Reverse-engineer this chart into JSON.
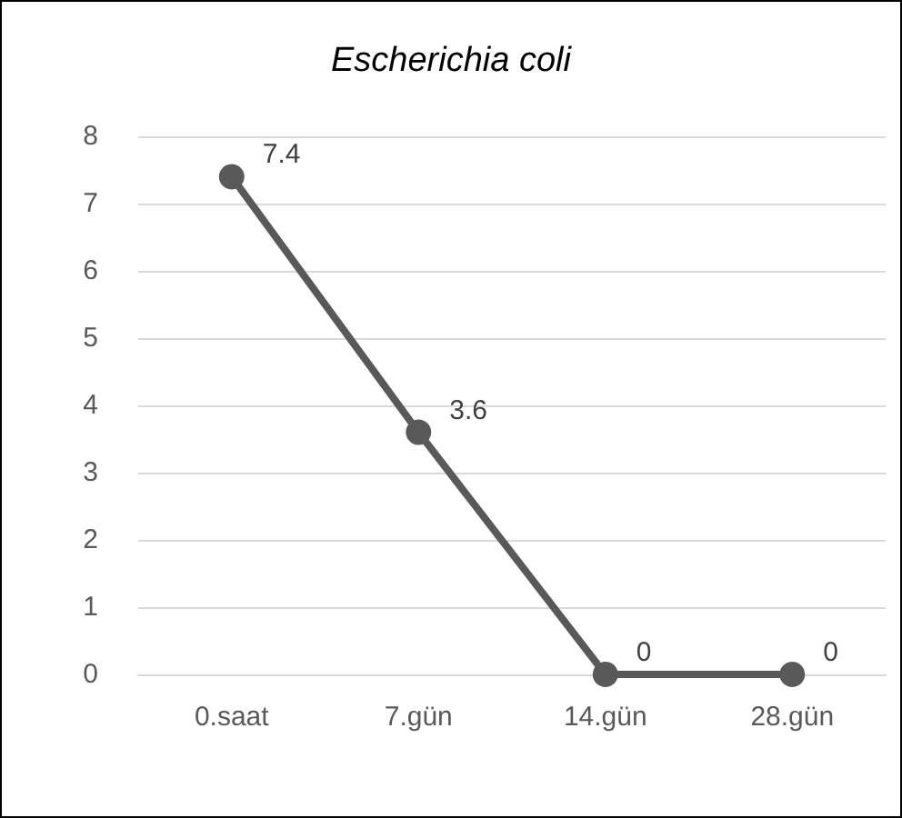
{
  "chart_data": {
    "type": "line",
    "title": "Escherichia coli",
    "categories": [
      "0.saat",
      "7.gün",
      "14.gün",
      "28.gün"
    ],
    "series": [
      {
        "color": "#595959",
        "values": [
          7.4,
          3.6,
          0,
          0
        ]
      }
    ],
    "ylim": [
      0,
      8
    ],
    "yticks": [
      0,
      1,
      2,
      3,
      4,
      5,
      6,
      7,
      8
    ],
    "grid": "y",
    "marker": "circle",
    "line_style": "solid",
    "data_labels": true
  }
}
